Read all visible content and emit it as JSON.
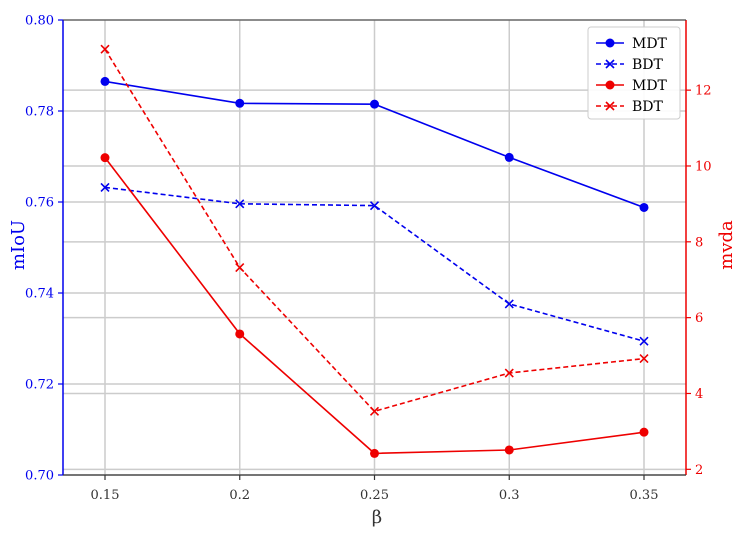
{
  "chart_data": {
    "type": "line",
    "x": [
      "0.15",
      "0.2",
      "0.25",
      "0.3",
      "0.35"
    ],
    "xlabel": "β",
    "ylabel_left": "mIoU",
    "ylabel_right": "mvda",
    "y_left_lim": [
      0.7,
      0.8
    ],
    "y_right_lim": [
      1.85,
      13.85
    ],
    "y_left_ticks": [
      0.7,
      0.72,
      0.74,
      0.76,
      0.78,
      0.8
    ],
    "y_left_tick_labels": [
      "0.70",
      "0.72",
      "0.74",
      "0.76",
      "0.78",
      "0.80"
    ],
    "y_right_ticks": [
      2,
      4,
      6,
      8,
      10,
      12
    ],
    "y_right_tick_labels": [
      "2",
      "4",
      "6",
      "8",
      "10",
      "12"
    ],
    "left_axis_color": "#0000ee",
    "right_axis_color": "#ee0000",
    "grid": true,
    "legend_position": "top-right",
    "series": [
      {
        "name": "MDT",
        "axis": "left",
        "color": "#0000ee",
        "style": "solid",
        "marker": "circle",
        "values": [
          0.7865,
          0.7817,
          0.7815,
          0.7698,
          0.7588
        ]
      },
      {
        "name": "BDT",
        "axis": "left",
        "color": "#0000ee",
        "style": "dashed",
        "marker": "x",
        "values": [
          0.7632,
          0.7596,
          0.7592,
          0.7376,
          0.7294
        ]
      },
      {
        "name": "MDT",
        "axis": "right",
        "color": "#ee0000",
        "style": "solid",
        "marker": "circle",
        "values": [
          10.22,
          5.57,
          2.42,
          2.51,
          2.98
        ]
      },
      {
        "name": "BDT",
        "axis": "right",
        "color": "#ee0000",
        "style": "dashed",
        "marker": "x",
        "values": [
          13.08,
          7.32,
          3.53,
          4.54,
          4.92
        ]
      }
    ]
  }
}
